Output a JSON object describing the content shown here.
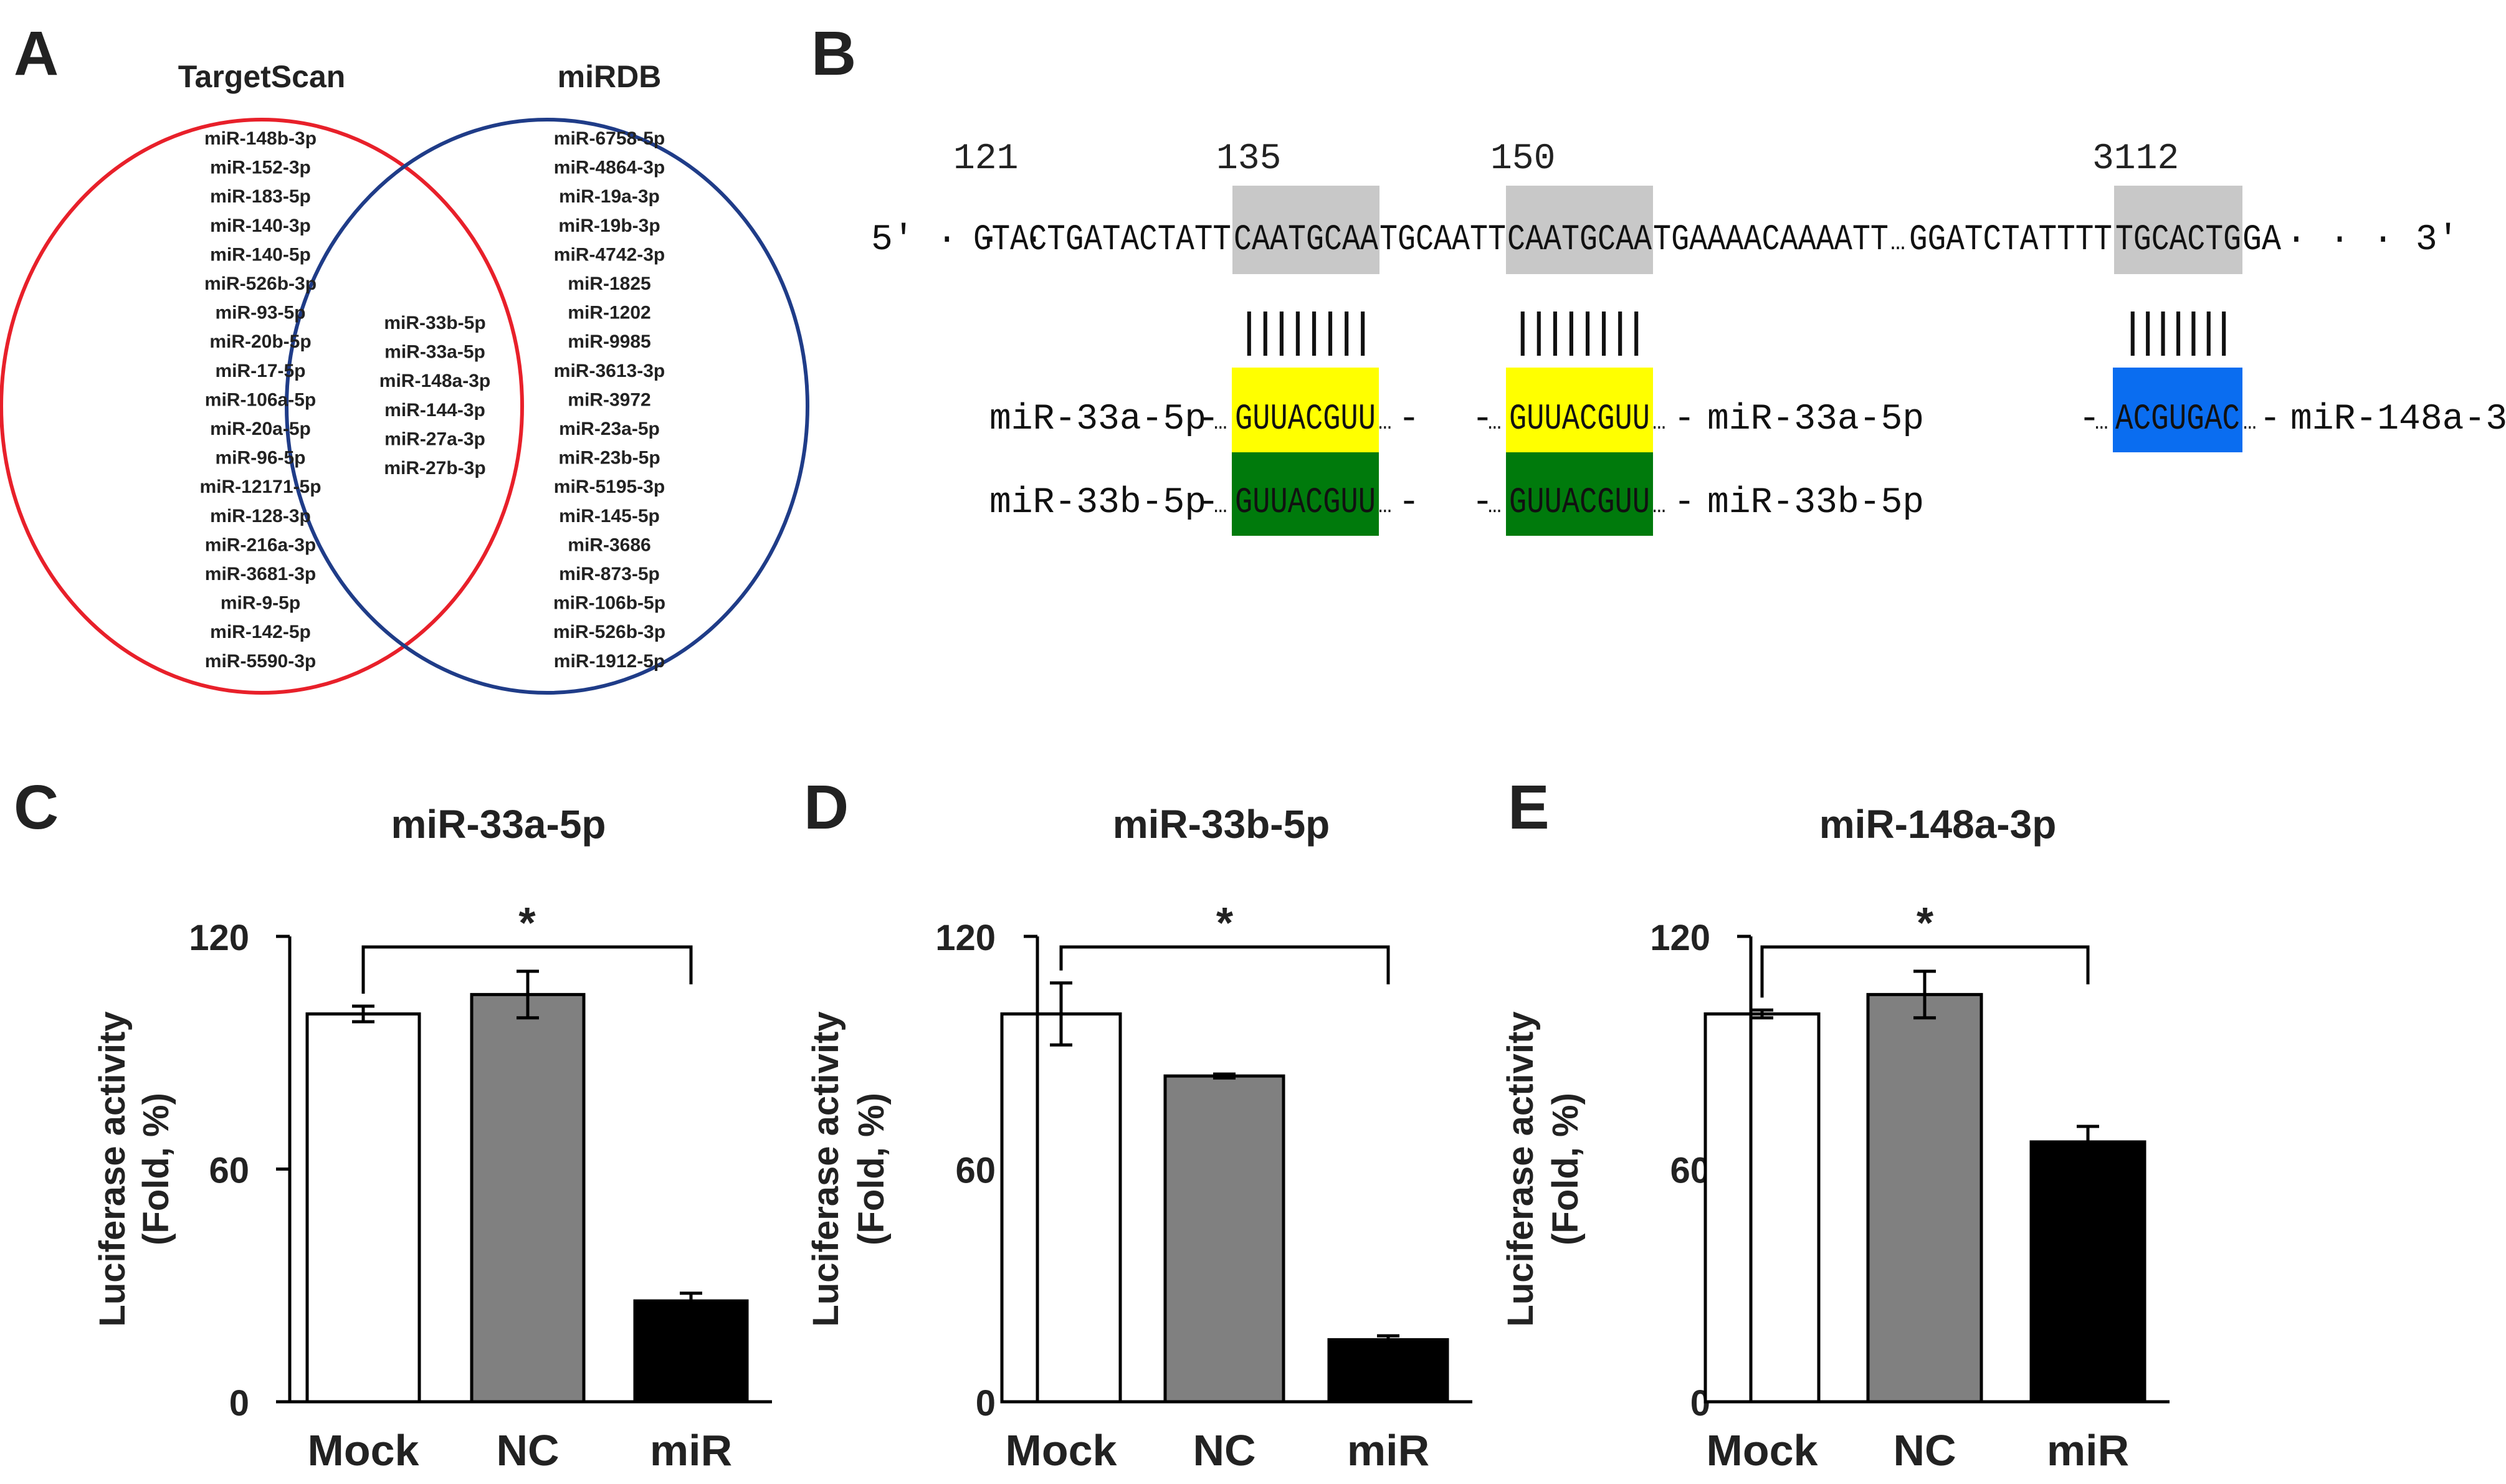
{
  "panel_labels": [
    "A",
    "B",
    "C",
    "D",
    "E"
  ],
  "venn": {
    "left_title": "TargetScan",
    "right_title": "miRDB",
    "left_only": [
      "miR-148b-3p",
      "miR-152-3p",
      "miR-183-5p",
      "miR-140-3p",
      "miR-140-5p",
      "miR-526b-3p",
      "miR-93-5p",
      "miR-20b-5p",
      "miR-17-5p",
      "miR-106a-5p",
      "miR-20a-5p",
      "miR-96-5p",
      "miR-12171-5p",
      "miR-128-3p",
      "miR-216a-3p",
      "miR-3681-3p",
      "miR-9-5p",
      "miR-142-5p",
      "miR-5590-3p"
    ],
    "intersection": [
      "miR-33b-5p",
      "miR-33a-5p",
      "miR-148a-3p",
      "miR-144-3p",
      "miR-27a-3p",
      "miR-27b-3p"
    ],
    "right_only": [
      "miR-6758-5p",
      "miR-4864-3p",
      "miR-19a-3p",
      "miR-19b-3p",
      "miR-4742-3p",
      "miR-1825",
      "miR-1202",
      "miR-9985",
      "miR-3613-3p",
      "miR-3972",
      "miR-23a-5p",
      "miR-23b-5p",
      "miR-5195-3p",
      "miR-145-5p",
      "miR-3686",
      "miR-873-5p",
      "miR-106b-5p",
      "miR-526b-3p",
      "miR-1912-5p"
    ],
    "colors": {
      "left": "#e8202a",
      "right": "#1f3c88"
    }
  },
  "alignment": {
    "positions": [
      "121",
      "135",
      "150",
      "3112"
    ],
    "prime5": "5′ · · ·",
    "prime3": "· · · 3′",
    "seg_a": "GTACTGATACTATT",
    "site1": "CAATGCAA",
    "seg_b": "TGCAATT",
    "site2": "CAATGCAA",
    "seg_c": "TGAAAACAAAATT",
    "ellipsis": "…",
    "seg_d": "GGATCTATTTT",
    "site3": "TGCACTG",
    "seg_e": "GA",
    "bars8": "||||||||",
    "bars7": "|||||||",
    "seed_33": "GUUACGUU",
    "seed_148": "ACGUGAC",
    "name_33a": "miR-33a-5p",
    "name_33b": "miR-33b-5p",
    "name_148a": "miR-148a-3p",
    "lead": "-",
    "trail": "-",
    "dots": "…",
    "colors": {
      "site": "#c8c8c8",
      "mir33a": "#ffff00",
      "mir33b": "#007a0c",
      "mir148a": "#0a6df0"
    }
  },
  "chart_data": [
    {
      "type": "bar",
      "title": "miR-33a-5p",
      "categories": [
        "Mock",
        "NC",
        "miR"
      ],
      "values": [
        100,
        105,
        26
      ],
      "errors": [
        2,
        6,
        2
      ],
      "ylabel": "Luciferase activity (Fold, %)",
      "ylabel_lines": [
        "Luciferase activity",
        "(Fold, %)"
      ],
      "ylim": [
        0,
        120
      ],
      "yticks": [
        "0",
        "60",
        "120"
      ],
      "significance": "*",
      "bar_colors": [
        "#ffffff",
        "#808080",
        "#000000"
      ]
    },
    {
      "type": "bar",
      "title": "miR-33b-5p",
      "categories": [
        "Mock",
        "NC",
        "miR"
      ],
      "values": [
        100,
        84,
        16
      ],
      "errors": [
        8,
        0.5,
        1
      ],
      "ylabel": "Luciferase activity (Fold, %)",
      "ylabel_lines": [
        "Luciferase activity",
        "(Fold, %)"
      ],
      "ylim": [
        0,
        120
      ],
      "yticks": [
        "0",
        "60",
        "120"
      ],
      "significance": "*",
      "bar_colors": [
        "#ffffff",
        "#808080",
        "#000000"
      ]
    },
    {
      "type": "bar",
      "title": "miR-148a-3p",
      "categories": [
        "Mock",
        "NC",
        "miR"
      ],
      "values": [
        100,
        105,
        67
      ],
      "errors": [
        1,
        6,
        4
      ],
      "ylabel": "Luciferase activity (Fold, %)",
      "ylabel_lines": [
        "Luciferase activity",
        "(Fold, %)"
      ],
      "ylim": [
        0,
        120
      ],
      "yticks": [
        "0",
        "60",
        "120"
      ],
      "significance": "*",
      "bar_colors": [
        "#ffffff",
        "#808080",
        "#000000"
      ]
    }
  ]
}
